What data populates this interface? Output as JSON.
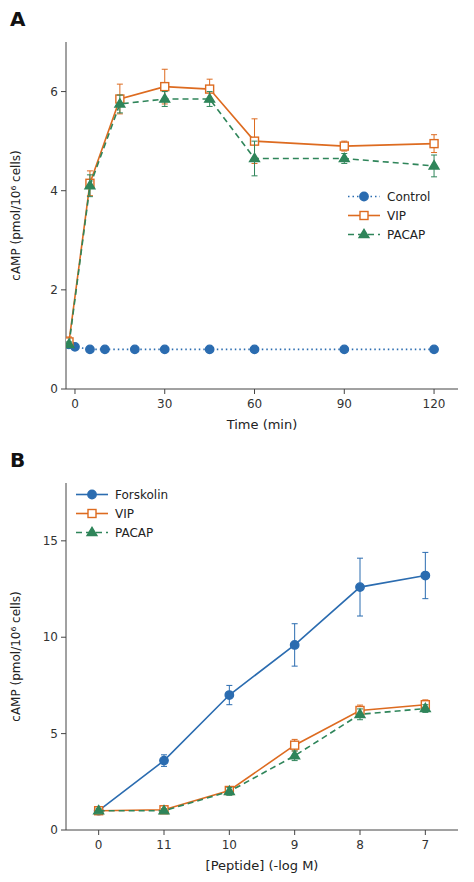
{
  "chart_data": [
    {
      "type": "line",
      "title": "A",
      "xlabel": "Time (min)",
      "ylabel": "cAMP (pmol/10⁶ cells)",
      "xlim": [
        -3,
        128
      ],
      "ylim": [
        0,
        7
      ],
      "xticks": [
        0,
        30,
        60,
        90,
        120
      ],
      "yticks": [
        0,
        2,
        4,
        6
      ],
      "grid": false,
      "legend": "right",
      "series": [
        {
          "name": "Control",
          "marker": "circle",
          "line_style": "dotted",
          "x": [
            -2,
            0,
            5,
            10,
            20,
            30,
            45,
            60,
            90,
            120
          ],
          "values": [
            0.9,
            0.85,
            0.8,
            0.8,
            0.8,
            0.8,
            0.8,
            0.8,
            0.8,
            0.8
          ],
          "errors": [
            0.05,
            0.05,
            0.03,
            0.03,
            0.03,
            0.03,
            0.03,
            0.03,
            0.03,
            0.03
          ]
        },
        {
          "name": "VIP",
          "marker": "open-square",
          "line_style": "solid",
          "x": [
            -2,
            5,
            15,
            30,
            45,
            60,
            90,
            120
          ],
          "values": [
            0.95,
            4.15,
            5.85,
            6.1,
            6.05,
            5.0,
            4.9,
            4.95
          ],
          "errors": [
            0.1,
            0.25,
            0.3,
            0.35,
            0.2,
            0.45,
            0.1,
            0.18
          ]
        },
        {
          "name": "PACAP",
          "marker": "triangle",
          "line_style": "dashed",
          "x": [
            -2,
            5,
            15,
            30,
            45,
            60,
            90,
            120
          ],
          "values": [
            0.9,
            4.1,
            5.75,
            5.85,
            5.85,
            4.65,
            4.65,
            4.5
          ],
          "errors": [
            0.05,
            0.22,
            0.18,
            0.15,
            0.15,
            0.35,
            0.1,
            0.22
          ]
        }
      ]
    },
    {
      "type": "line",
      "title": "B",
      "xlabel": "[Peptide] (-log M)",
      "ylabel": "cAMP (pmol/10⁶ cells)",
      "categories": [
        "0",
        "11",
        "10",
        "9",
        "8",
        "7"
      ],
      "ylim": [
        0,
        18
      ],
      "yticks": [
        0,
        5,
        10,
        15
      ],
      "grid": false,
      "legend": "upper left",
      "series": [
        {
          "name": "Forskolin",
          "marker": "circle",
          "line_style": "solid",
          "values": [
            1.0,
            3.6,
            7.0,
            9.6,
            12.6,
            13.2
          ],
          "errors": [
            0.12,
            0.3,
            0.5,
            1.1,
            1.5,
            1.2
          ]
        },
        {
          "name": "VIP",
          "marker": "open-square",
          "line_style": "solid",
          "values": [
            1.0,
            1.05,
            2.05,
            4.4,
            6.2,
            6.5
          ],
          "errors": [
            0.1,
            0.12,
            0.2,
            0.3,
            0.28,
            0.25
          ]
        },
        {
          "name": "PACAP",
          "marker": "triangle",
          "line_style": "dashed",
          "values": [
            1.0,
            1.0,
            2.0,
            3.85,
            6.0,
            6.3
          ],
          "errors": [
            0.1,
            0.1,
            0.2,
            0.25,
            0.28,
            0.2
          ]
        }
      ]
    }
  ]
}
